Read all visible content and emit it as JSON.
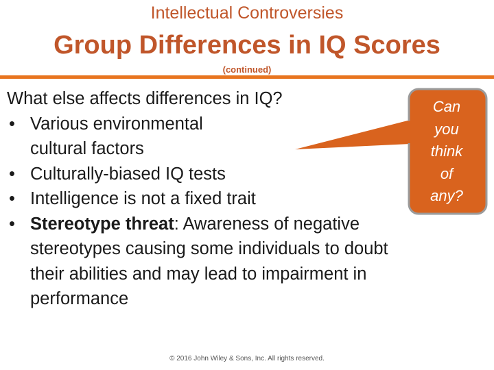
{
  "header": {
    "supertitle": "Intellectual Controversies",
    "title": "Group Differences in IQ Scores",
    "subtitle": "(continued)"
  },
  "body": {
    "question": "What else affects differences in IQ?",
    "bullets": [
      {
        "lines": [
          "Various environmental",
          "cultural factors"
        ]
      },
      {
        "lines": [
          "Culturally-biased IQ tests"
        ]
      },
      {
        "lines": [
          "Intelligence is not a fixed trait"
        ]
      },
      {
        "term": "Stereotype threat",
        "rest_lines": [
          ":  Awareness of negative",
          "stereotypes causing some individuals to doubt",
          "their abilities and may lead to impairment in",
          "performance"
        ]
      }
    ],
    "bullet_glyph": "•"
  },
  "callout": {
    "words": [
      "Can",
      "you",
      "think",
      "of",
      "any?"
    ],
    "fill_color": "#d9631e",
    "border_color": "#9b9b9b"
  },
  "footer": {
    "copyright": "© 2016 John Wiley & Sons, Inc. All rights reserved."
  },
  "colors": {
    "accent": "#c0562a",
    "rule": "#e8741f"
  }
}
